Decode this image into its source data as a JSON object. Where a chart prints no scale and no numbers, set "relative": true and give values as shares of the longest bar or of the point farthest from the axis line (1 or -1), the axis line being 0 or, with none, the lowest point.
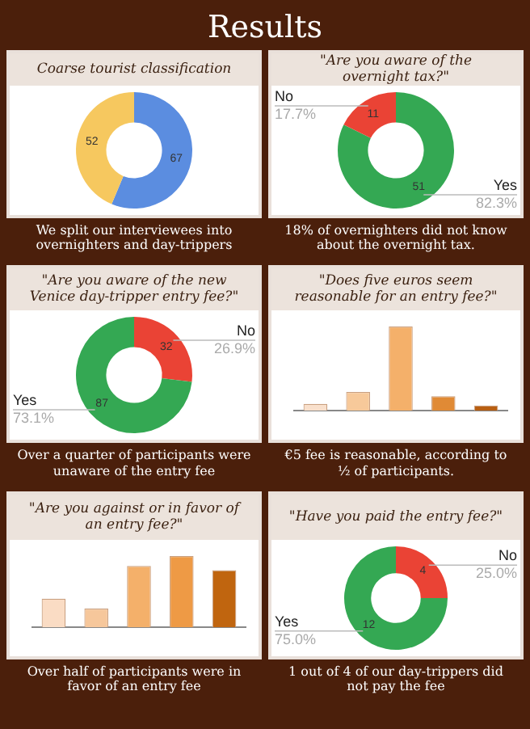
{
  "chart_data": [
    {
      "type": "other",
      "title": "Results"
    },
    {
      "type": "donut",
      "title": "Coarse tourist classification",
      "categories": [
        null,
        null
      ],
      "values": [
        67,
        52
      ],
      "colors": [
        "#5b8de0",
        "#f6c85f"
      ],
      "data_labels": true,
      "annotations": [
        "We split our interviewees into overnighters and day-trippers"
      ]
    },
    {
      "type": "donut",
      "title": "\"Are you aware of the overnight tax?\"",
      "categories": [
        "Yes",
        "No"
      ],
      "values": [
        51,
        11
      ],
      "colors": [
        "#34a853",
        "#ea4335"
      ],
      "data_labels": true,
      "annotations": [
        "18% of overnighters did not know about the overnight tax.",
        {
          "text": "82.3%",
          "x": "Yes"
        },
        {
          "text": "17.7%",
          "x": "No"
        }
      ]
    },
    {
      "type": "donut",
      "title": "\"Are you aware of the new Venice day-tripper entry fee?\"",
      "categories": [
        "No",
        "Yes"
      ],
      "values": [
        32,
        87
      ],
      "colors": [
        "#ea4335",
        "#34a853"
      ],
      "data_labels": true,
      "annotations": [
        "Over a quarter of participants were unaware of the entry fee",
        {
          "text": "26.9%",
          "x": "No"
        },
        {
          "text": "73.1%",
          "x": "Yes"
        }
      ]
    },
    {
      "type": "bar",
      "title": "\"Does five euros seem reasonable for an entry fee?\"",
      "categories": [
        null,
        null,
        null,
        null,
        null
      ],
      "values": [
        0.08,
        0.22,
        1,
        0.17,
        0.06
      ],
      "colors": [
        "#f9e0cc",
        "#f7c99a",
        "#f4b06a",
        "#e08a35",
        "#b85f12"
      ],
      "relative": true,
      "annotations": [
        "€5 fee is reasonable, according to ½ of participants."
      ]
    },
    {
      "type": "bar",
      "title": "\"Are you against or in favor of an entry fee?\"",
      "categories": [
        null,
        null,
        null,
        null,
        null
      ],
      "values": [
        0.4,
        0.26,
        0.86,
        1,
        0.8
      ],
      "colors": [
        "#fadcc4",
        "#f6c79b",
        "#f4b06a",
        "#ee9a45",
        "#c0650f"
      ],
      "relative": true,
      "annotations": [
        "Over half of participants were in favor of an entry fee"
      ]
    },
    {
      "type": "donut",
      "title": "\"Have you paid the entry fee?\"",
      "categories": [
        "No",
        "Yes"
      ],
      "values": [
        4,
        12
      ],
      "colors": [
        "#ea4335",
        "#34a853"
      ],
      "data_labels": true,
      "annotations": [
        "1 out of 4 of our day-trippers did not pay the fee",
        {
          "text": "25.0%",
          "x": "No"
        },
        {
          "text": "75.0%",
          "x": "Yes"
        }
      ]
    }
  ]
}
